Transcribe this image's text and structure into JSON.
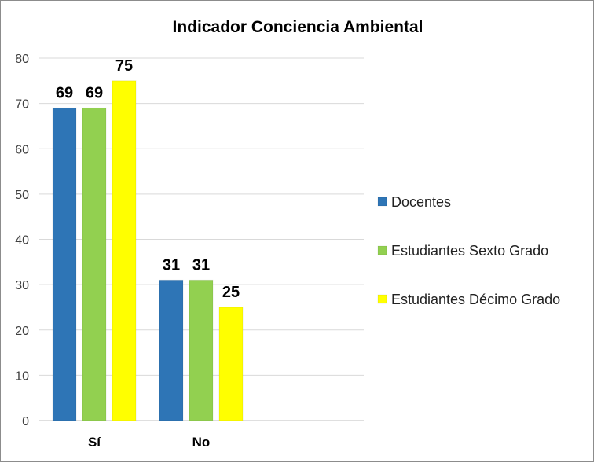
{
  "chart_data": {
    "type": "bar",
    "title": "Indicador Conciencia Ambiental",
    "categories": [
      "Sí",
      "No"
    ],
    "series": [
      {
        "name": "Docentes",
        "values": [
          69,
          31
        ],
        "color": "#2E75B6"
      },
      {
        "name": "Estudiantes Sexto Grado",
        "values": [
          69,
          31
        ],
        "color": "#92D050"
      },
      {
        "name": "Estudiantes Décimo Grado",
        "values": [
          75,
          25
        ],
        "color": "#FFFF00"
      }
    ],
    "ylim": [
      0,
      80
    ],
    "yticks": [
      0,
      10,
      20,
      30,
      40,
      50,
      60,
      70,
      80
    ],
    "grid": true,
    "legend_position": "right",
    "data_labels": true
  }
}
